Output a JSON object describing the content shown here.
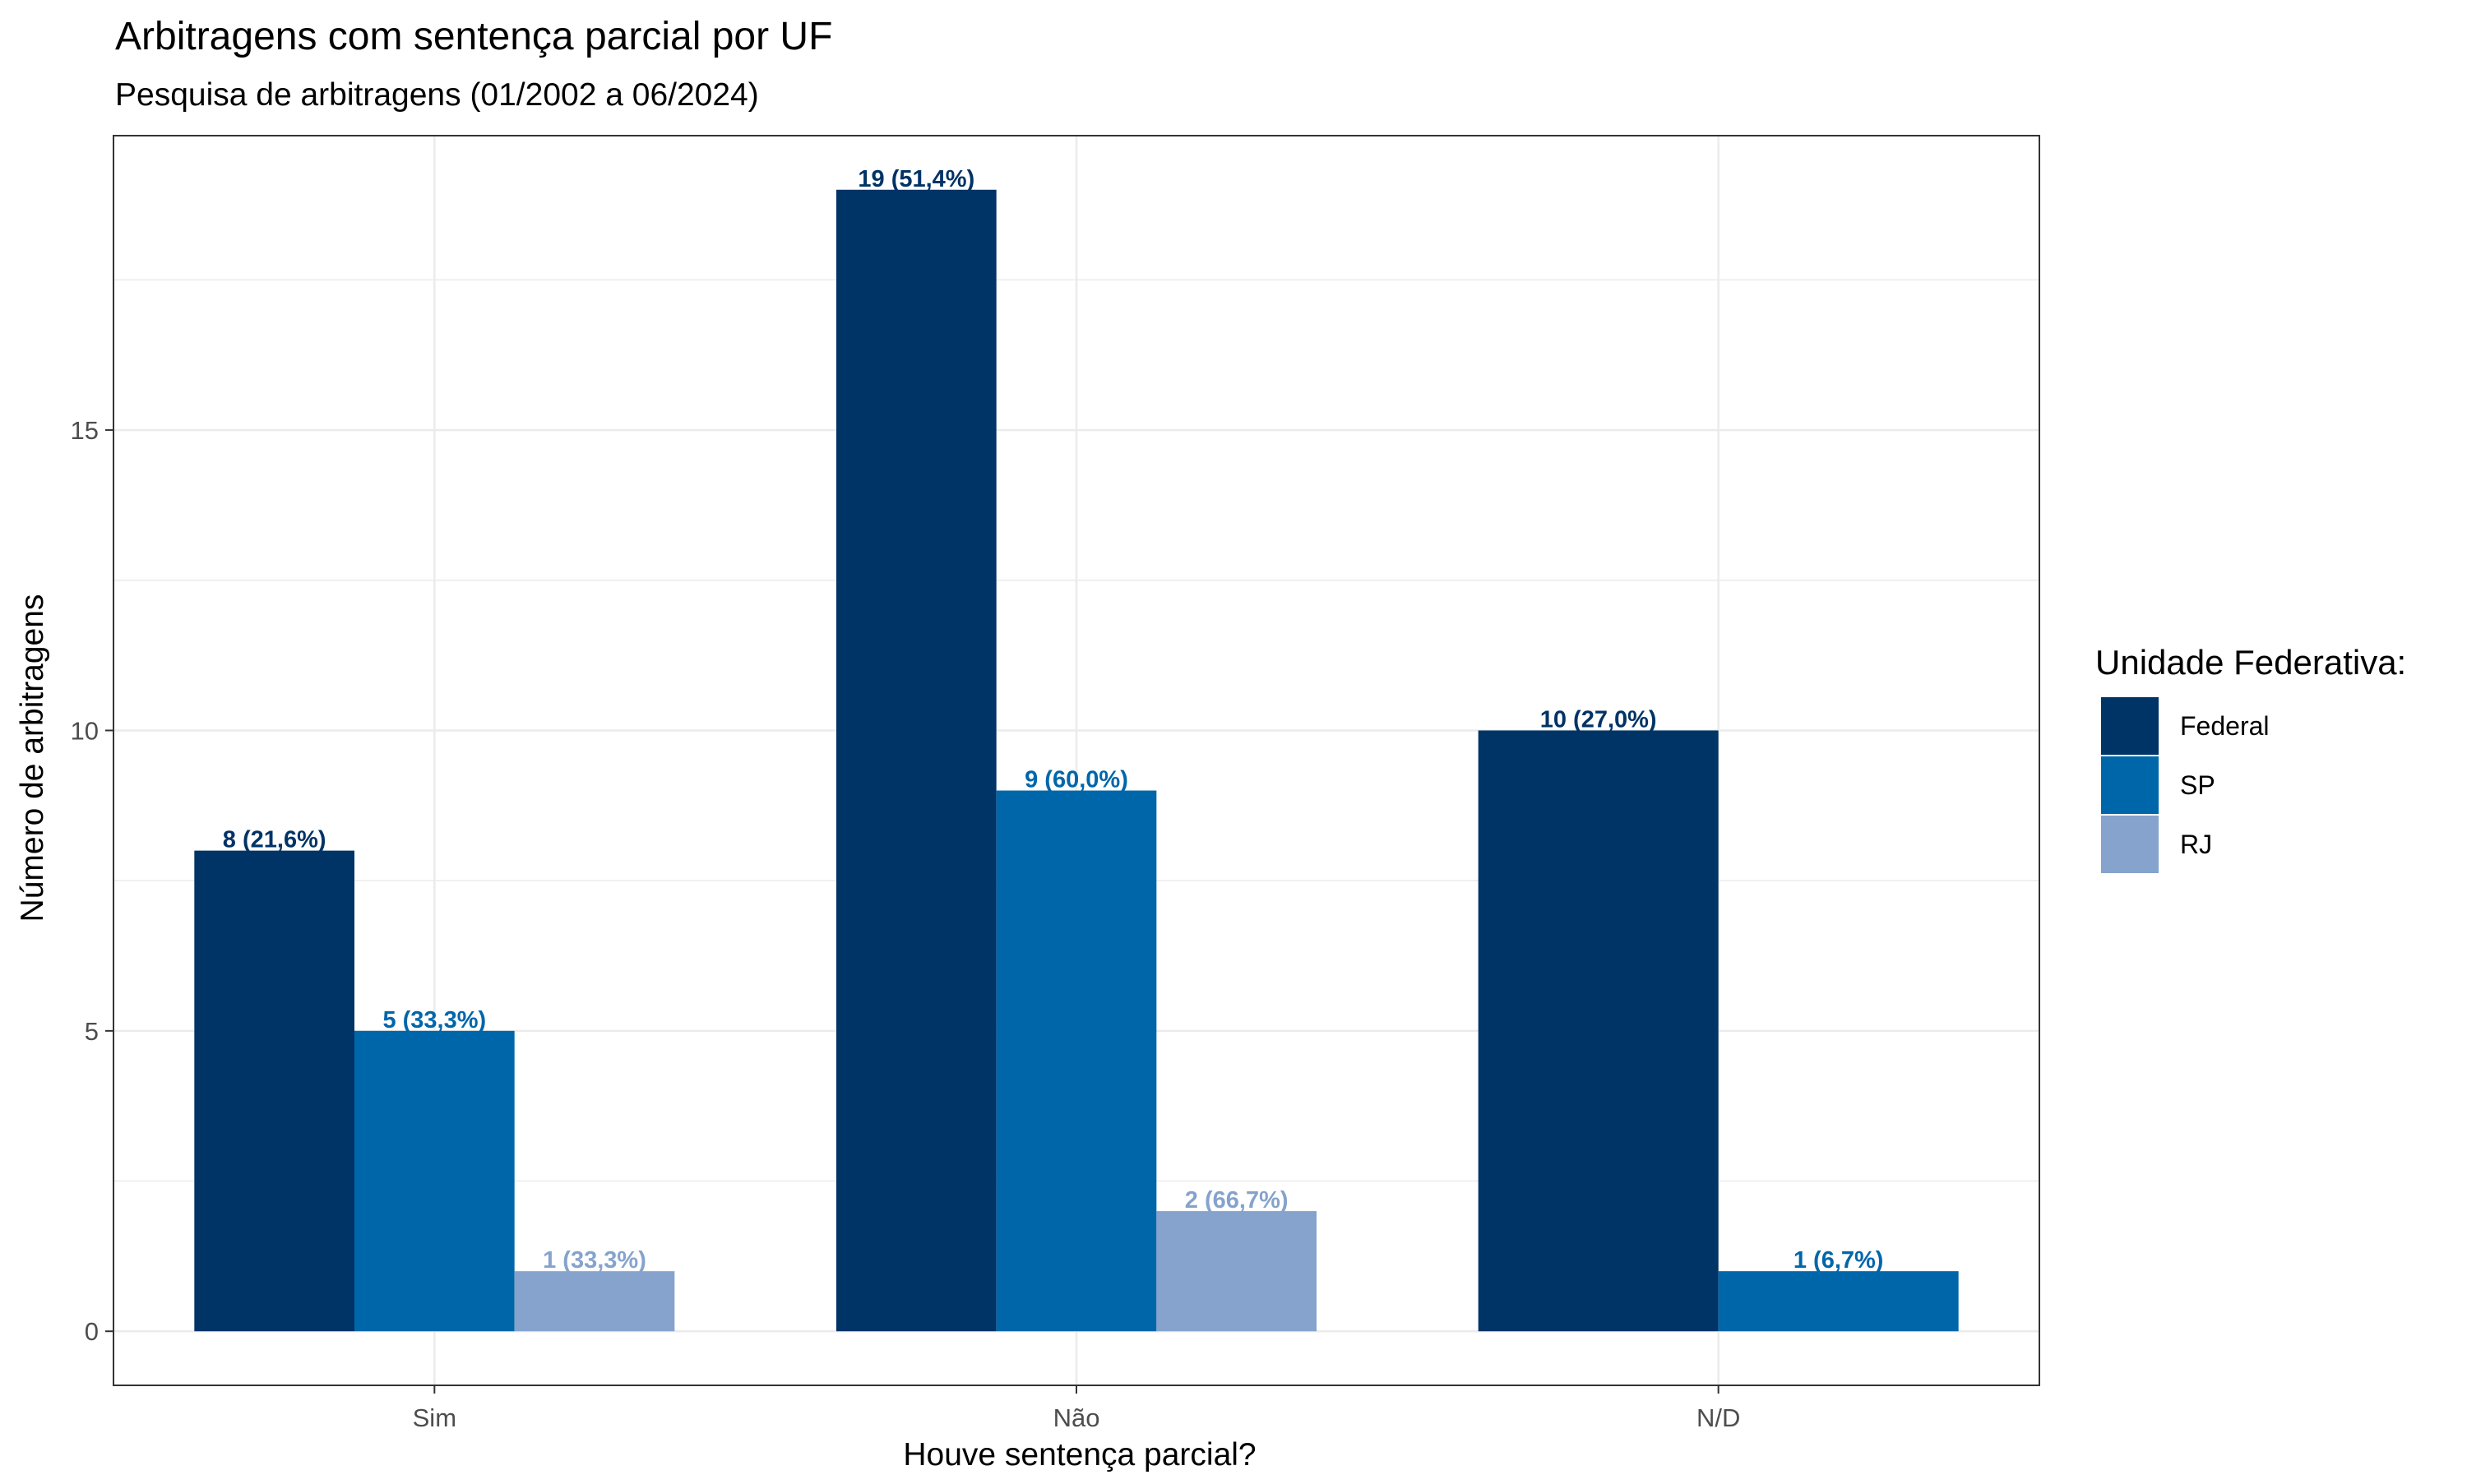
{
  "chart_data": {
    "type": "bar",
    "title": "Arbitragens com sentença parcial por UF",
    "subtitle": "Pesquisa de arbitragens (01/2002 a 06/2024)",
    "xlabel": "Houve sentença parcial?",
    "ylabel": "Número de arbitragens",
    "categories": [
      "Sim",
      "Não",
      "N/D"
    ],
    "ylim": [
      -0.9,
      19.9
    ],
    "yticks": [
      0,
      5,
      10,
      15
    ],
    "grid": true,
    "legend": {
      "title": "Unidade Federativa:",
      "position": "right"
    },
    "series": [
      {
        "name": "Federal",
        "color": "#003366",
        "values": [
          8,
          19,
          10
        ],
        "labels": [
          "8 (21,6%)",
          "19 (51,4%)",
          "10 (27,0%)"
        ]
      },
      {
        "name": "SP",
        "color": "#0066AA",
        "values": [
          5,
          9,
          1
        ],
        "labels": [
          "5 (33,3%)",
          "9 (60,0%)",
          "1 (6,7%)"
        ]
      },
      {
        "name": "RJ",
        "color": "#85A3CC",
        "values": [
          1,
          2,
          null
        ],
        "labels": [
          "1 (33,3%)",
          "2 (66,7%)",
          ""
        ]
      }
    ]
  }
}
